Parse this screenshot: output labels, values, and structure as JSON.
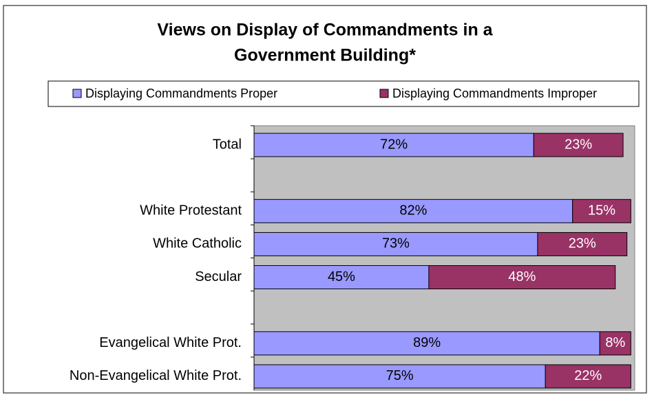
{
  "chart_data": {
    "type": "stacked_barh",
    "title": [
      "Views on Display of Commandments in a",
      "Government Building*"
    ],
    "categories": [
      "Total",
      null,
      "White Protestant",
      "White Catholic",
      "Secular",
      null,
      "Evangelical White Prot.",
      "Non-Evangelical White Prot."
    ],
    "series": [
      {
        "name": "Displaying Commandments Proper",
        "color": "#9999ff",
        "label_color": "#000000",
        "values": [
          72,
          null,
          82,
          73,
          45,
          null,
          89,
          75
        ],
        "value_labels": [
          "72%",
          null,
          "82%",
          "73%",
          "45%",
          null,
          "89%",
          "75%"
        ]
      },
      {
        "name": "Displaying Commandments Improper",
        "color": "#993366",
        "label_color": "#ffffff",
        "values": [
          23,
          null,
          15,
          23,
          48,
          null,
          8,
          22
        ],
        "value_labels": [
          "23%",
          null,
          "15%",
          "23%",
          "48%",
          null,
          "8%",
          "22%"
        ]
      }
    ],
    "xlim": [
      0,
      98
    ],
    "plot_background": "#c0c0c0"
  }
}
